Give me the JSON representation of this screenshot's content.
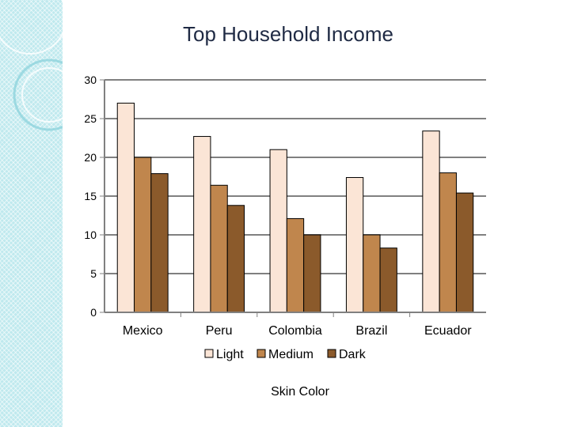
{
  "chart_data": {
    "type": "bar",
    "title": "Top Household Income",
    "xlabel": "Skin Color",
    "ylabel": "",
    "ylim": [
      0,
      30
    ],
    "yticks": [
      0,
      5,
      10,
      15,
      20,
      25,
      30
    ],
    "grid": true,
    "legend_position": "bottom",
    "categories": [
      "Mexico",
      "Peru",
      "Colombia",
      "Brazil",
      "Ecuador"
    ],
    "series": [
      {
        "name": "Light",
        "color": "#fbe5d6",
        "values": [
          27.0,
          22.7,
          21.0,
          17.4,
          23.4
        ]
      },
      {
        "name": "Medium",
        "color": "#c0864d",
        "values": [
          20.0,
          16.4,
          12.1,
          10.0,
          18.0
        ]
      },
      {
        "name": "Dark",
        "color": "#8b5a2b",
        "values": [
          17.9,
          13.8,
          10.0,
          8.3,
          15.4
        ]
      }
    ]
  }
}
